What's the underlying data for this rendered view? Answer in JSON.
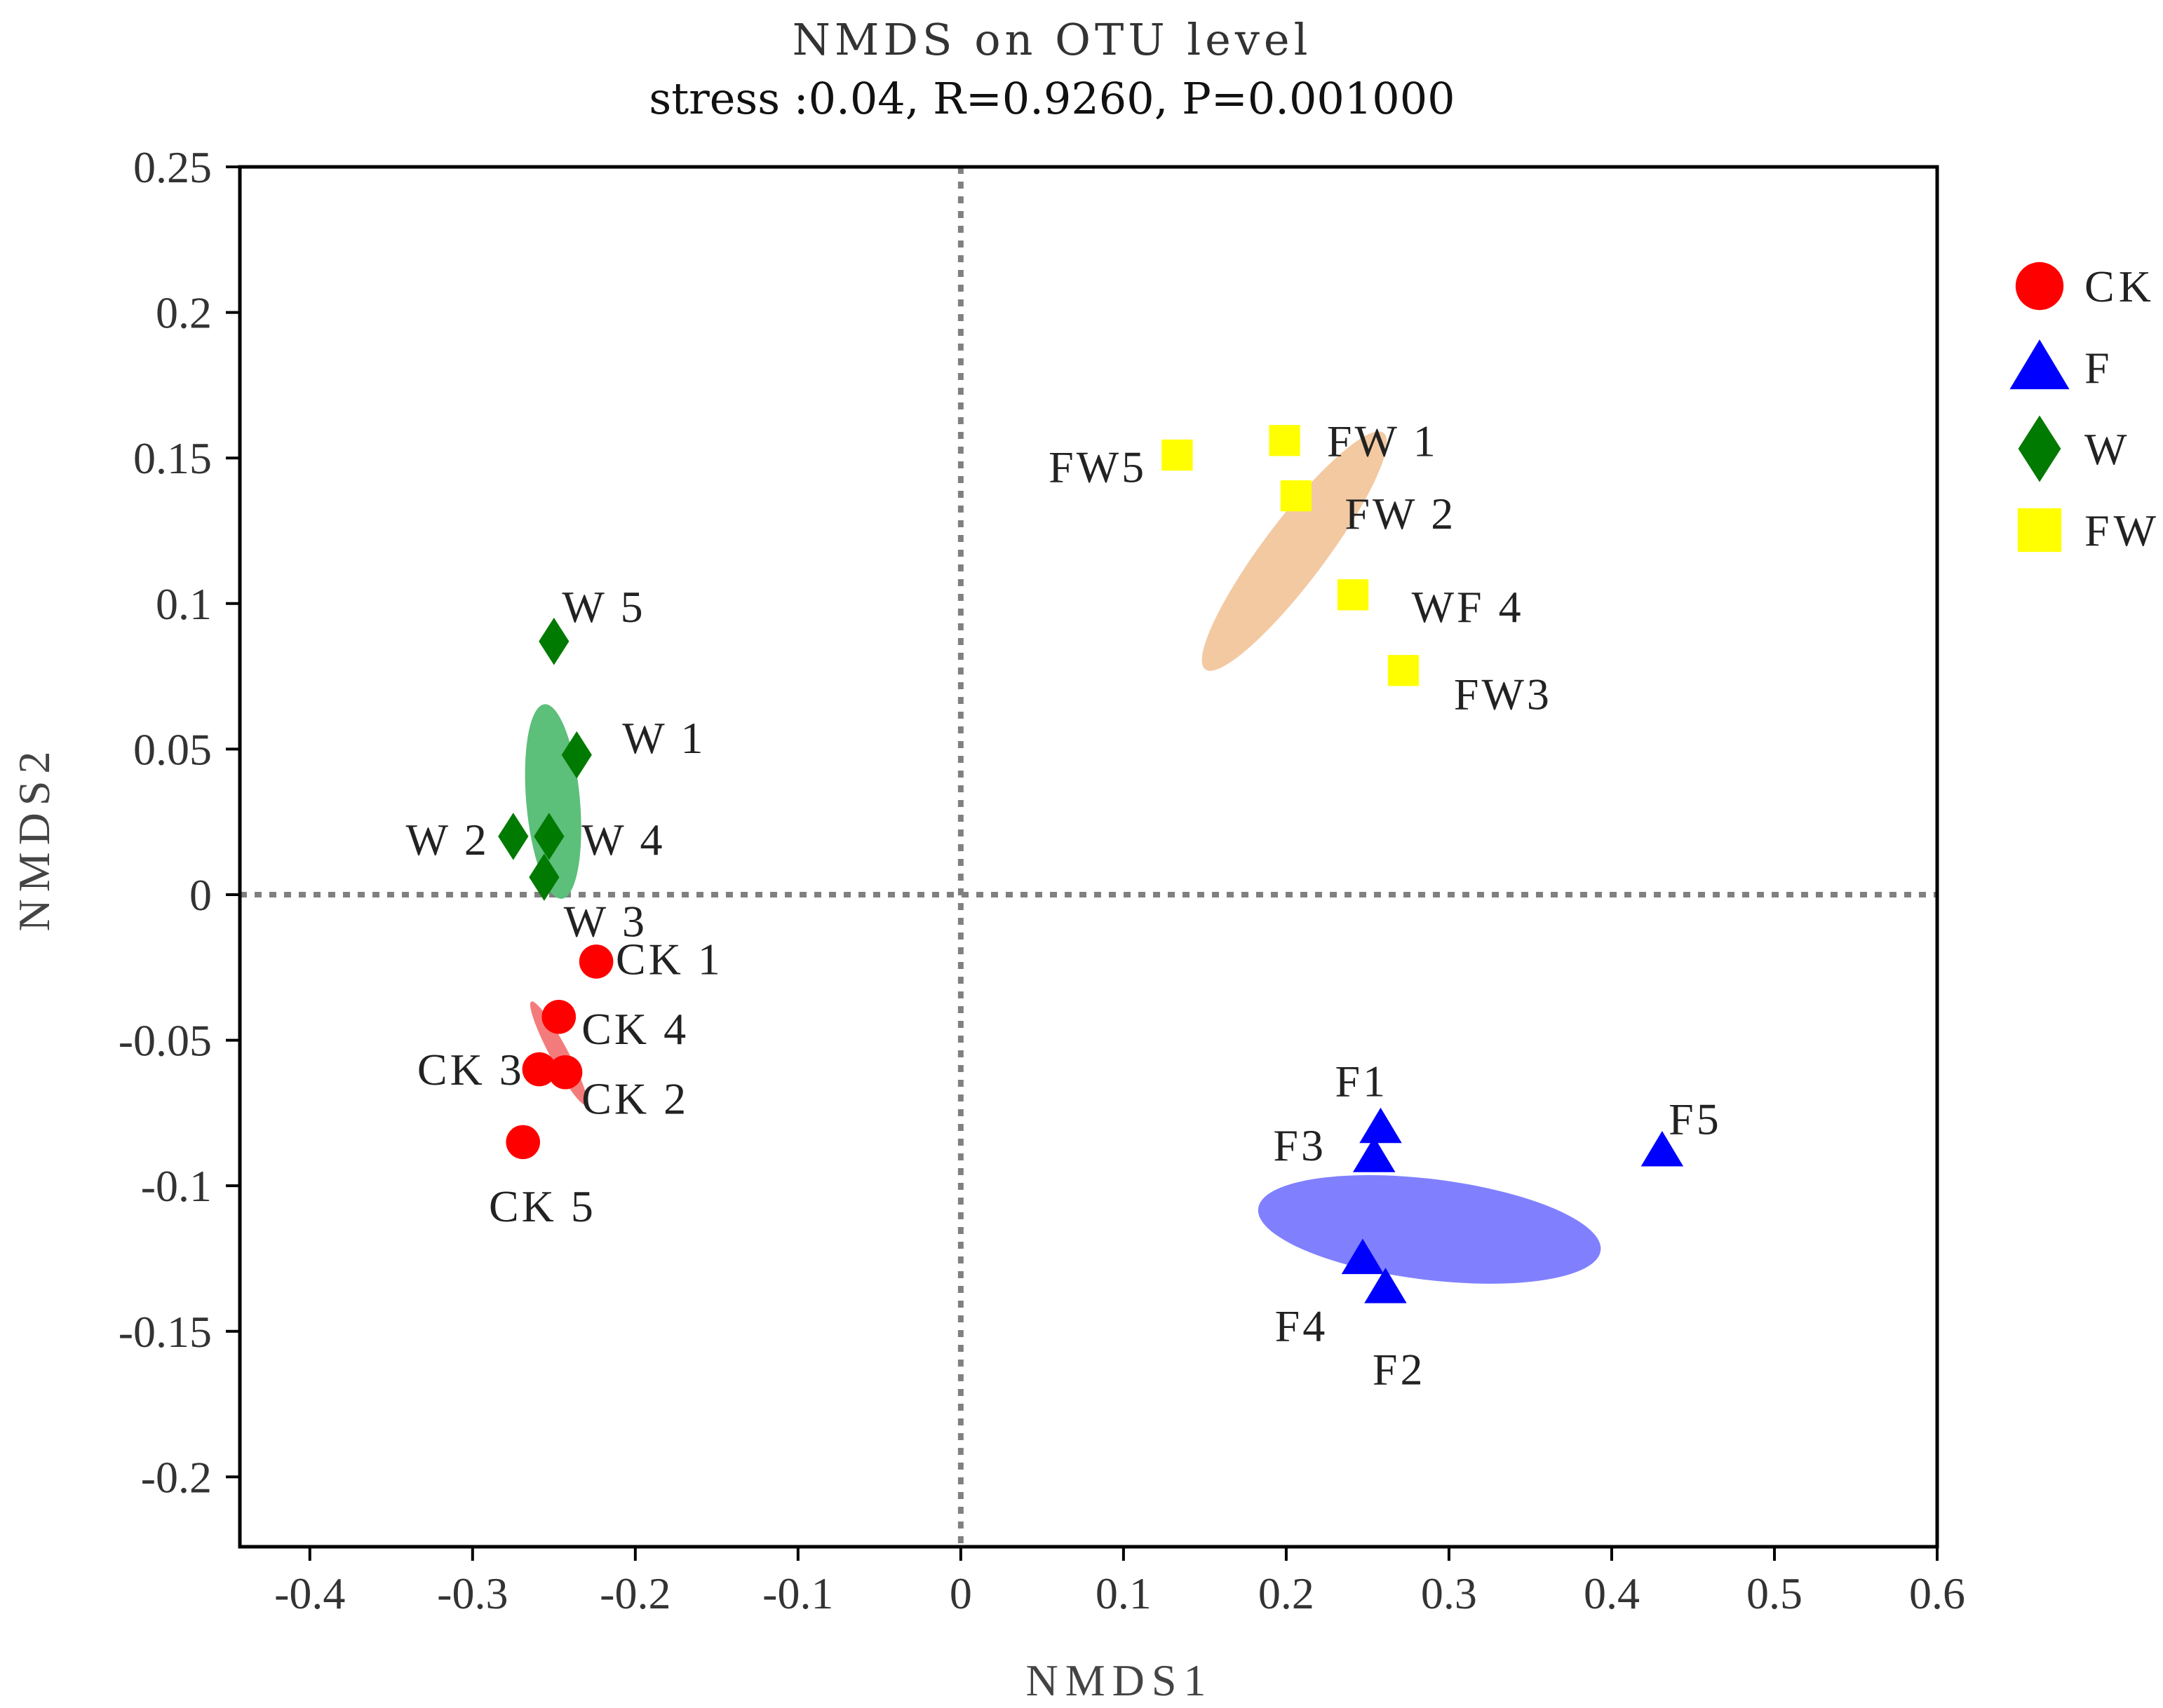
{
  "chart_data": {
    "type": "scatter",
    "title": "NMDS on OTU level",
    "subtitle": "stress :0.04, R=0.9260, P=0.001000",
    "xlabel": "NMDS1",
    "ylabel": "NMDS2",
    "xlim": [
      -0.443,
      0.6
    ],
    "ylim": [
      -0.224,
      0.25
    ],
    "xticks": [
      -0.4,
      -0.3,
      -0.2,
      -0.1,
      0,
      0.1,
      0.2,
      0.3,
      0.4,
      0.5,
      0.6
    ],
    "xtick_labels": [
      "-0.4",
      "-0.3",
      "-0.2",
      "-0.1",
      "0",
      "0.1",
      "0.2",
      "0.3",
      "0.4",
      "0.5",
      "0.6"
    ],
    "yticks": [
      0.25,
      0.2,
      0.15,
      0.1,
      0.05,
      0,
      -0.05,
      -0.1,
      -0.15,
      -0.2
    ],
    "ytick_labels": [
      "0.25",
      "0.2",
      "0.15",
      "0.1",
      "0.05",
      "0",
      "-0.05",
      "-0.1",
      "-0.15",
      "-0.2"
    ],
    "reference_lines": {
      "x": 0,
      "y": 0,
      "style": "dotted"
    },
    "legend": [
      {
        "name": "CK",
        "shape": "circle"
      },
      {
        "name": "F",
        "shape": "triangle"
      },
      {
        "name": "W",
        "shape": "diamond"
      },
      {
        "name": "FW",
        "shape": "square"
      }
    ],
    "series": [
      {
        "name": "CK",
        "shape": "circle",
        "color": "#ff0000",
        "ellipse": {
          "center": [
            -0.247,
            -0.0545
          ],
          "rx": 0.036,
          "ry": 0.0055,
          "angle_deg": -62,
          "color": "#f47b7b"
        },
        "points": [
          {
            "label": "CK 1",
            "x": -0.224,
            "y": -0.023,
            "lx": 0.012,
            "ly": 0.001
          },
          {
            "label": "CK 4",
            "x": -0.247,
            "y": -0.042,
            "lx": 0.014,
            "ly": -0.004
          },
          {
            "label": "CK 3",
            "x": -0.259,
            "y": -0.06,
            "lx": -0.075,
            "ly": 0.0
          },
          {
            "label": "CK 2",
            "x": -0.243,
            "y": -0.061,
            "lx": 0.01,
            "ly": -0.009
          },
          {
            "label": "CK 5",
            "x": -0.269,
            "y": -0.085,
            "lx": -0.021,
            "ly": -0.022
          }
        ]
      },
      {
        "name": "F",
        "shape": "triangle",
        "color": "#0000ff",
        "ellipse": {
          "center": [
            0.288,
            -0.115
          ],
          "rx": 0.106,
          "ry": 0.031,
          "angle_deg": -7,
          "color": "#8080ff"
        },
        "points": [
          {
            "label": "F1",
            "x": 0.258,
            "y": -0.08,
            "lx": -0.028,
            "ly": 0.016
          },
          {
            "label": "F3",
            "x": 0.254,
            "y": -0.09,
            "lx": -0.062,
            "ly": 0.004
          },
          {
            "label": "F5",
            "x": 0.431,
            "y": -0.088,
            "lx": 0.004,
            "ly": 0.011
          },
          {
            "label": "F4",
            "x": 0.247,
            "y": -0.125,
            "lx": -0.054,
            "ly": -0.023
          },
          {
            "label": "F2",
            "x": 0.261,
            "y": -0.135,
            "lx": -0.008,
            "ly": -0.028
          }
        ]
      },
      {
        "name": "W",
        "shape": "diamond",
        "color": "#007a00",
        "ellipse": {
          "center": [
            -0.2505,
            0.032
          ],
          "rx": 0.06,
          "ry": 0.0165,
          "angle_deg": -85,
          "color": "#5cbf7a"
        },
        "points": [
          {
            "label": "W 5",
            "x": -0.25,
            "y": 0.087,
            "lx": 0.005,
            "ly": 0.012
          },
          {
            "label": "W 1",
            "x": -0.236,
            "y": 0.048,
            "lx": 0.028,
            "ly": 0.006
          },
          {
            "label": "W 2",
            "x": -0.275,
            "y": 0.02,
            "lx": -0.066,
            "ly": -0.001
          },
          {
            "label": "W 4",
            "x": -0.253,
            "y": 0.02,
            "lx": 0.02,
            "ly": -0.001
          },
          {
            "label": "W 3",
            "x": -0.256,
            "y": 0.006,
            "lx": 0.012,
            "ly": -0.015
          }
        ]
      },
      {
        "name": "FW",
        "shape": "square",
        "color": "#ffff00",
        "ellipse": {
          "center": [
            0.205,
            0.118
          ],
          "rx": 0.091,
          "ry": 0.019,
          "angle_deg": 53,
          "color": "#f3c9a2"
        },
        "points": [
          {
            "label": "FW 1",
            "x": 0.199,
            "y": 0.156,
            "lx": 0.026,
            "ly": 0.0
          },
          {
            "label": "FW5",
            "x": 0.133,
            "y": 0.151,
            "lx": -0.079,
            "ly": -0.004
          },
          {
            "label": "FW 2",
            "x": 0.206,
            "y": 0.137,
            "lx": 0.03,
            "ly": -0.006
          },
          {
            "label": "WF 4",
            "x": 0.241,
            "y": 0.103,
            "lx": 0.036,
            "ly": -0.004
          },
          {
            "label": "FW3",
            "x": 0.272,
            "y": 0.077,
            "lx": 0.031,
            "ly": -0.008
          }
        ]
      }
    ]
  }
}
